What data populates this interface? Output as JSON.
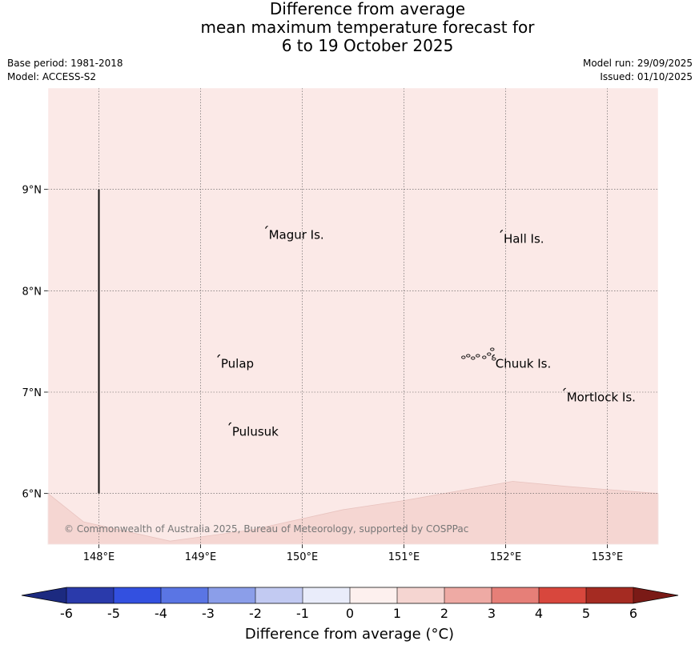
{
  "title": {
    "line1": "Difference from average",
    "line2": "mean maximum temperature forecast for",
    "line3": "6 to 19 October 2025"
  },
  "meta": {
    "base_period": "Base period: 1981-2018",
    "model": "Model: ACCESS-S2",
    "model_run": "Model run: 29/09/2025",
    "issued": "Issued: 01/10/2025"
  },
  "map": {
    "lon_range": [
      147.5,
      153.5
    ],
    "lat_range": [
      5.5,
      10.0
    ],
    "lon_ticks": [
      {
        "value": 148,
        "label": "148°E"
      },
      {
        "value": 149,
        "label": "149°E"
      },
      {
        "value": 150,
        "label": "150°E"
      },
      {
        "value": 151,
        "label": "151°E"
      },
      {
        "value": 152,
        "label": "152°E"
      },
      {
        "value": 153,
        "label": "153°E"
      }
    ],
    "lat_ticks": [
      {
        "value": 9,
        "label": "9°N"
      },
      {
        "value": 8,
        "label": "8°N"
      },
      {
        "value": 7,
        "label": "7°N"
      },
      {
        "value": 6,
        "label": "6°N"
      }
    ],
    "places": [
      {
        "name": "Magur Is.",
        "lon": 149.67,
        "lat": 8.55
      },
      {
        "name": "Hall Is.",
        "lon": 151.98,
        "lat": 8.51
      },
      {
        "name": "Pulap",
        "lon": 149.2,
        "lat": 7.28
      },
      {
        "name": "Chuuk Is.",
        "lon": 151.9,
        "lat": 7.28
      },
      {
        "name": "Mortlock Is.",
        "lon": 152.6,
        "lat": 6.95
      },
      {
        "name": "Pulusuk",
        "lon": 149.31,
        "lat": 6.61
      }
    ],
    "base_fill": "#fbe9e7",
    "warm_fill": "#f5d6d2",
    "warm_boundary": [
      [
        147.5,
        6.0
      ],
      [
        147.85,
        5.72
      ],
      [
        148.7,
        5.53
      ],
      [
        149.5,
        5.64
      ],
      [
        150.4,
        5.84
      ],
      [
        151.0,
        5.93
      ],
      [
        152.07,
        6.12
      ],
      [
        152.6,
        6.07
      ],
      [
        153.5,
        6.0
      ]
    ],
    "vertical_line": {
      "lon": 148.0,
      "lat_from": 6.0,
      "lat_to": 9.0
    },
    "copyright": "© Commonwealth of Australia 2025, Bureau of Meteorology, supported by COSPPac"
  },
  "colorbar": {
    "ticks": [
      "-6",
      "-5",
      "-4",
      "-3",
      "-2",
      "-1",
      "0",
      "1",
      "2",
      "3",
      "4",
      "5",
      "6"
    ],
    "low_extend_color": "#1c2a80",
    "high_extend_color": "#7a1a16",
    "colors": [
      "#2a3aab",
      "#3350e0",
      "#5a75e4",
      "#8b9ee9",
      "#c2caf2",
      "#e9ecfa",
      "#fdf0ee",
      "#f5d5d1",
      "#eeaaa4",
      "#e67f78",
      "#d8473d",
      "#a52b22"
    ],
    "label": "Difference from average (°C)"
  }
}
